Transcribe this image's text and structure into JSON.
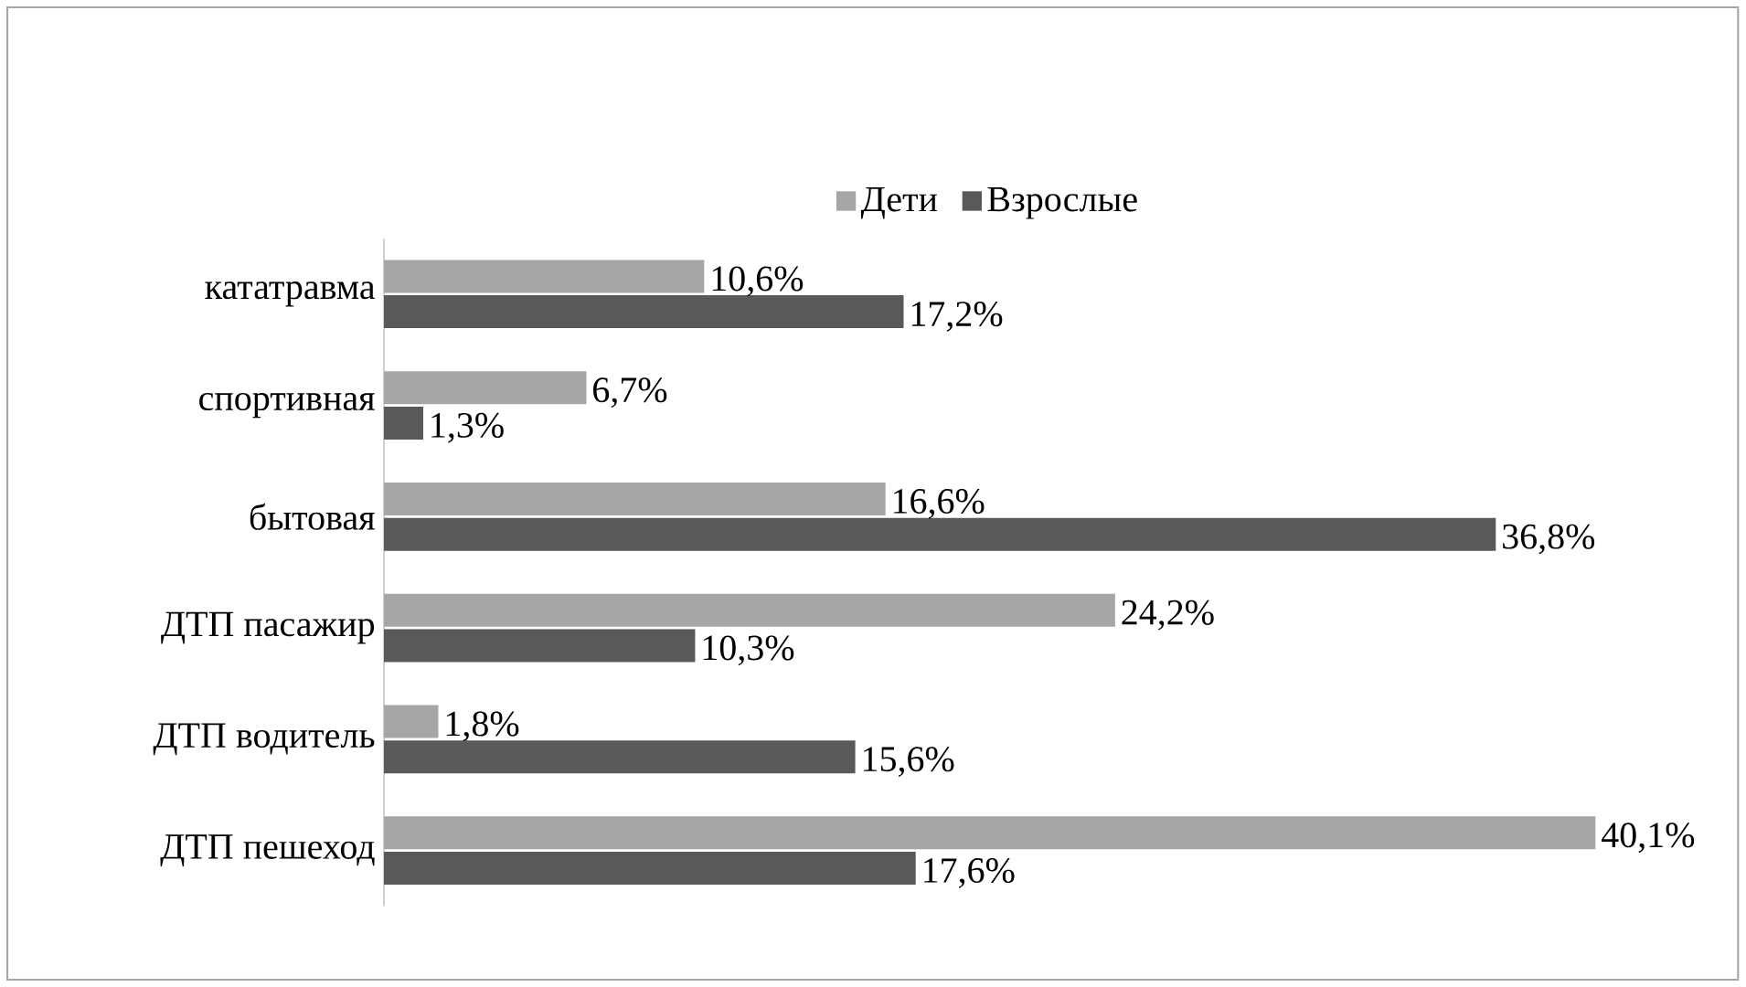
{
  "chart_data": {
    "type": "bar",
    "orientation": "horizontal",
    "legend": "top",
    "categories": [
      "кататравма",
      "спортивная",
      "бытовая",
      "ДТП пасажир",
      "ДТП водитель",
      "ДТП пешеход"
    ],
    "series": [
      {
        "name": "Дети",
        "color": "#a6a6a6",
        "values": [
          10.6,
          6.7,
          16.6,
          24.2,
          1.8,
          40.1
        ],
        "value_labels": [
          "10,6%",
          "6,7%",
          "16,6%",
          "24,2%",
          "1,8%",
          "40,1%"
        ]
      },
      {
        "name": "Взрослые",
        "color": "#595959",
        "values": [
          17.2,
          1.3,
          36.8,
          10.3,
          15.6,
          17.6
        ],
        "value_labels": [
          "17,2%",
          "1,3%",
          "36,8%",
          "10,3%",
          "15,6%",
          "17,6%"
        ]
      }
    ]
  }
}
